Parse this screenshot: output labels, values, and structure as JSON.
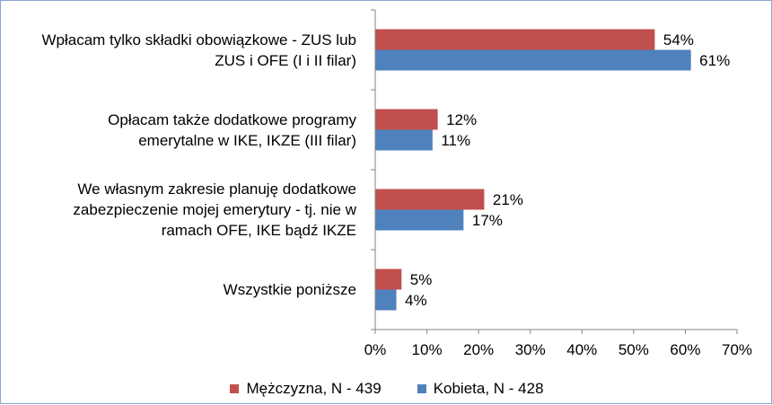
{
  "chart_data": {
    "type": "bar",
    "orientation": "horizontal",
    "categories": [
      [
        "Wpłacam tylko składki obowiązkowe - ZUS lub",
        "ZUS i OFE (I i II filar)"
      ],
      [
        "Opłacam także dodatkowe programy",
        "emerytalne w IKE, IKZE (III filar)"
      ],
      [
        "We własnym zakresie planuję dodatkowe",
        "zabezpieczenie mojej emerytury - tj. nie w",
        "ramach OFE, IKE bądź IKZE"
      ],
      [
        "Wszystkie poniższe"
      ]
    ],
    "series": [
      {
        "name": "Mężczyzna, N - 439",
        "color": "#c0504d",
        "values": [
          54,
          12,
          21,
          5
        ]
      },
      {
        "name": "Kobieta, N - 428",
        "color": "#4f81bd",
        "values": [
          61,
          11,
          17,
          4
        ]
      }
    ],
    "xlim": [
      0,
      70
    ],
    "xticks": [
      "0%",
      "10%",
      "20%",
      "30%",
      "40%",
      "50%",
      "60%",
      "70%"
    ],
    "value_suffix": "%",
    "grid": false,
    "legend_position": "bottom"
  }
}
